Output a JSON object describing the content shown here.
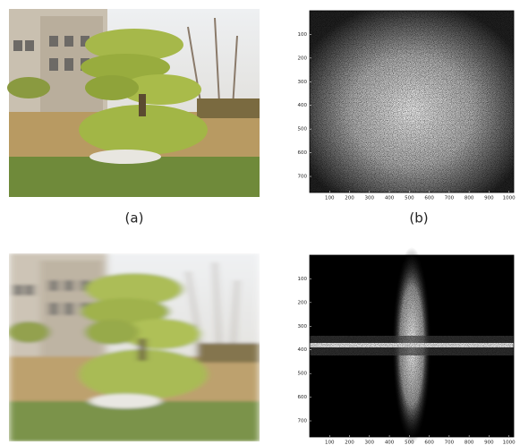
{
  "panels": [
    {
      "caption": "(a)"
    },
    {
      "caption": "(b)",
      "xlim": [
        0,
        1024
      ],
      "ylim": [
        0,
        768
      ],
      "x_ticks": [
        100,
        200,
        300,
        400,
        500,
        600,
        700,
        800,
        900,
        1000
      ],
      "y_ticks": [
        100,
        200,
        300,
        400,
        500,
        600,
        700
      ]
    },
    {},
    {
      "xlim": [
        0,
        1024
      ],
      "ylim": [
        0,
        768
      ],
      "x_ticks": [
        100,
        200,
        300,
        400,
        500,
        600,
        700,
        800,
        900,
        1000
      ],
      "y_ticks": [
        100,
        200,
        300,
        400,
        500,
        600,
        700
      ]
    }
  ]
}
